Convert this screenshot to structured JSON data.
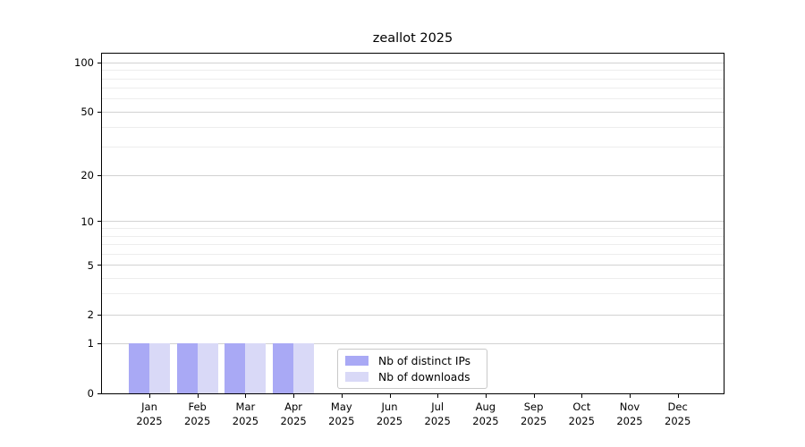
{
  "title": "zeallot 2025",
  "chart_data": {
    "type": "bar",
    "title": "zeallot 2025",
    "categories": [
      "Jan",
      "Feb",
      "Mar",
      "Apr",
      "May",
      "Jun",
      "Jul",
      "Aug",
      "Sep",
      "Oct",
      "Nov",
      "Dec"
    ],
    "category_year": "2025",
    "series": [
      {
        "name": "Nb of distinct IPs",
        "color": "#a9a9f5",
        "values": [
          1,
          1,
          1,
          1,
          0,
          0,
          0,
          0,
          0,
          0,
          0,
          0
        ]
      },
      {
        "name": "Nb of downloads",
        "color": "#d9d9f7",
        "values": [
          1,
          1,
          1,
          1,
          0,
          0,
          0,
          0,
          0,
          0,
          0,
          0
        ]
      }
    ],
    "yscale": "log1p",
    "ylim": [
      0,
      114
    ],
    "y_ticks": [
      0,
      1,
      2,
      5,
      10,
      20,
      50,
      100
    ],
    "grid_major": [
      1,
      2,
      5,
      10,
      20,
      50,
      100
    ],
    "grid_minor": [
      3,
      4,
      6,
      7,
      8,
      9,
      30,
      40,
      60,
      70,
      80,
      90
    ],
    "legend_position": "bottom-center",
    "grid_on": true,
    "colors": {
      "grid_major": "#d2d2d2",
      "grid_minor": "#ededed",
      "axis": "#000000",
      "background": "#ffffff",
      "text": "#000000"
    }
  },
  "legend": {
    "items": [
      {
        "label": "Nb of distinct IPs",
        "color": "#a9a9f5"
      },
      {
        "label": "Nb of downloads",
        "color": "#d9d9f7"
      }
    ]
  }
}
